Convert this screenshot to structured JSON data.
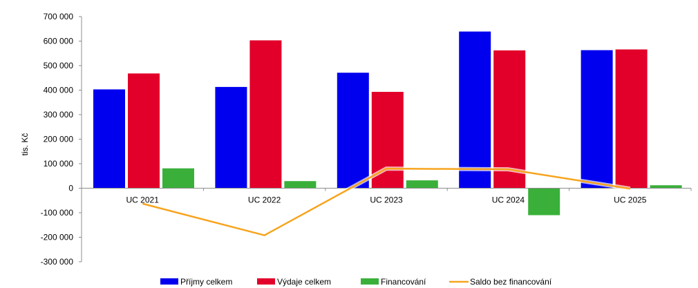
{
  "chart_data": {
    "type": "bar",
    "ylabel": "tis. Kč",
    "ylim": [
      -300000,
      700000
    ],
    "y_ticks": [
      {
        "value": 700000,
        "label": "700 000"
      },
      {
        "value": 600000,
        "label": "600 000"
      },
      {
        "value": 500000,
        "label": "500 000"
      },
      {
        "value": 400000,
        "label": "400 000"
      },
      {
        "value": 300000,
        "label": "300 000"
      },
      {
        "value": 200000,
        "label": "200 000"
      },
      {
        "value": 100000,
        "label": "100 000"
      },
      {
        "value": 0,
        "label": "0"
      },
      {
        "value": -100000,
        "label": "-100 000"
      },
      {
        "value": -200000,
        "label": "-200 000"
      },
      {
        "value": -300000,
        "label": "-300 000"
      }
    ],
    "categories": [
      "UC 2021",
      "UC 2022",
      "UC 2023",
      "UC 2024",
      "UC 2025"
    ],
    "series": [
      {
        "name": "Příjmy celkem",
        "type": "bar",
        "color": "#0000ee",
        "values": [
          403000,
          413000,
          471000,
          639000,
          563000
        ]
      },
      {
        "name": "Výdaje celkem",
        "type": "bar",
        "color": "#e2002a",
        "values": [
          468000,
          603000,
          393000,
          562000,
          566000
        ]
      },
      {
        "name": "Financování",
        "type": "bar",
        "color": "#3ab03a",
        "values": [
          81000,
          29000,
          32000,
          -110000,
          12000
        ]
      },
      {
        "name": "Saldo bez financování",
        "type": "line",
        "color": "#f7a41d",
        "values": [
          -63000,
          -192000,
          80000,
          77000,
          -2000
        ]
      }
    ],
    "grid": false,
    "legend_position": "bottom"
  }
}
